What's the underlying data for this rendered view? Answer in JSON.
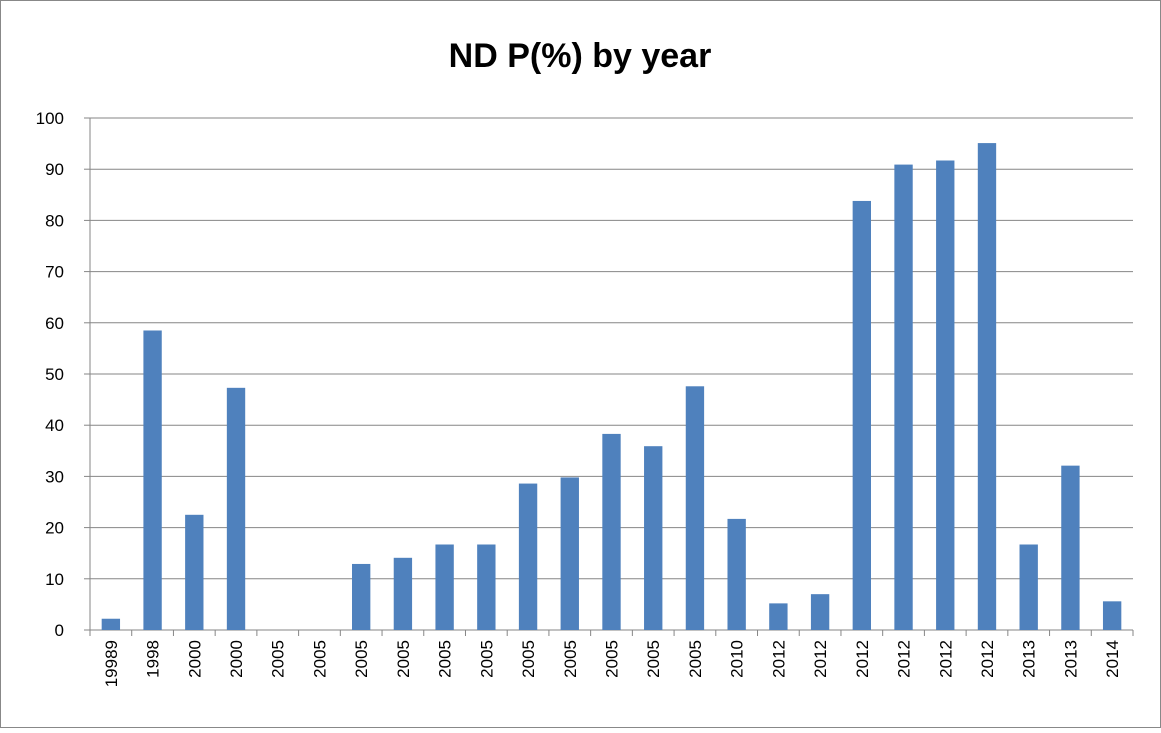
{
  "chart_data": {
    "type": "bar",
    "title": "ND P(%) by year",
    "categories": [
      "19989",
      "1998",
      "2000",
      "2000",
      "2005",
      "2005",
      "2005",
      "2005",
      "2005",
      "2005",
      "2005",
      "2005",
      "2005",
      "2005",
      "2005",
      "2010",
      "2012",
      "2012",
      "2012",
      "2012",
      "2012",
      "2012",
      "2013",
      "2013",
      "2014"
    ],
    "values": [
      2.2,
      58.5,
      22.5,
      47.3,
      0,
      0,
      12.9,
      14.1,
      16.7,
      16.7,
      28.6,
      29.8,
      38.3,
      35.9,
      47.6,
      21.7,
      5.2,
      7,
      83.8,
      90.9,
      91.7,
      95.1,
      16.7,
      32.1,
      5.6
    ],
    "color": "#4f81bd",
    "ylim": [
      0,
      100
    ],
    "yticks": [
      0,
      10,
      20,
      30,
      40,
      50,
      60,
      70,
      80,
      90,
      100
    ],
    "grid": true
  }
}
